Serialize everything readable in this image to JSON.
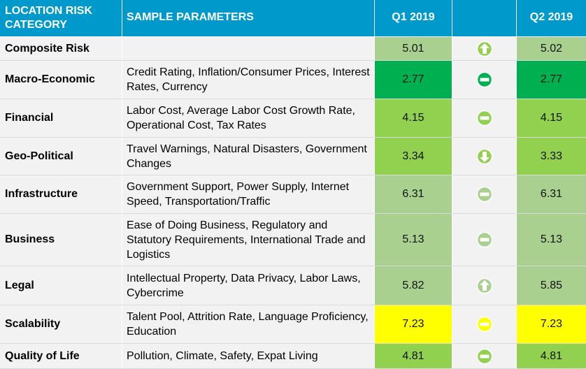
{
  "header": {
    "col1": "LOCATION RISK CATEGORY",
    "col2": "SAMPLE PARAMETERS",
    "col3": "Q1 2019",
    "col4": "",
    "col5": "Q2 2019"
  },
  "rows": [
    {
      "category": "Composite Risk",
      "parameters": "",
      "q1": "5.01",
      "trend": "up",
      "q2": "5.02",
      "value_color": "#a9d08e",
      "icon_color": "#92d050"
    },
    {
      "category": "Macro-Economic",
      "parameters": "Credit Rating, Inflation/Consumer Prices, Interest Rates, Currency",
      "q1": "2.77",
      "trend": "no-change",
      "q2": "2.77",
      "value_color": "#00b050",
      "icon_color": "#00b050"
    },
    {
      "category": "Financial",
      "parameters": "Labor Cost, Average Labor Cost Growth Rate, Operational Cost, Tax Rates",
      "q1": "4.15",
      "trend": "no-change",
      "q2": "4.15",
      "value_color": "#92d050",
      "icon_color": "#92d050"
    },
    {
      "category": "Geo-Political",
      "parameters": "Travel Warnings, Natural Disasters, Government Changes",
      "q1": "3.34",
      "trend": "down",
      "q2": "3.33",
      "value_color": "#92d050",
      "icon_color": "#92d050"
    },
    {
      "category": "Infrastructure",
      "parameters": "Government Support, Power Supply, Internet Speed, Transportation/Traffic",
      "q1": "6.31",
      "trend": "no-change",
      "q2": "6.31",
      "value_color": "#a9d08e",
      "icon_color": "#a9d08e"
    },
    {
      "category": "Business",
      "parameters": "Ease of Doing Business, Regulatory and Statutory Requirements, International Trade and Logistics",
      "q1": "5.13",
      "trend": "no-change",
      "q2": "5.13",
      "value_color": "#a9d08e",
      "icon_color": "#a9d08e"
    },
    {
      "category": "Legal",
      "parameters": "Intellectual Property, Data Privacy, Labor Laws, Cybercrime",
      "q1": "5.82",
      "trend": "up",
      "q2": "5.85",
      "value_color": "#a9d08e",
      "icon_color": "#a9d08e"
    },
    {
      "category": "Scalability",
      "parameters": "Talent Pool, Attrition Rate, Language Proficiency, Education",
      "q1": "7.23",
      "trend": "no-change",
      "q2": "7.23",
      "value_color": "#ffff00",
      "icon_color": "#ffff00"
    },
    {
      "category": "Quality of Life",
      "parameters": "Pollution, Climate, Safety, Expat Living",
      "q1": "4.81",
      "trend": "no-change",
      "q2": "4.81",
      "value_color": "#92d050",
      "icon_color": "#92d050"
    }
  ]
}
